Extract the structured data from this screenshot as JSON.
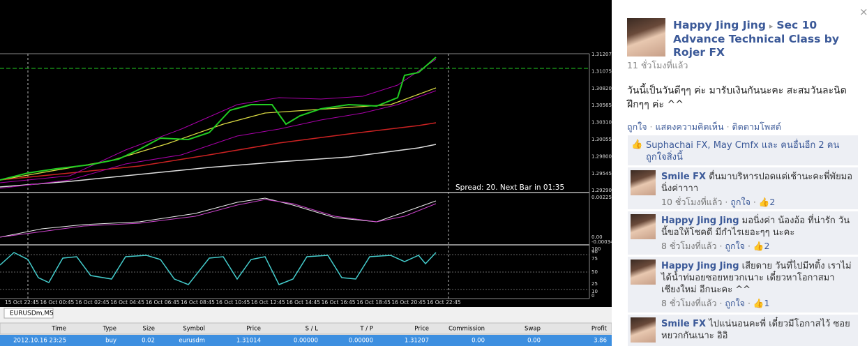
{
  "chart": {
    "price_labels": [
      "1.31207",
      "1.31075",
      "1.30820",
      "1.30565",
      "1.30310",
      "1.30055",
      "1.29800",
      "1.29545",
      "1.29290"
    ],
    "macd_labels": [
      "0.002255",
      "0.00",
      "-0.00034"
    ],
    "stoch_labels": [
      "100",
      "90",
      "75",
      "50",
      "25",
      "10",
      "0"
    ],
    "time_labels": [
      "15 Oct 22:45",
      "16 Oct 00:45",
      "16 Oct 02:45",
      "16 Oct 04:45",
      "16 Oct 06:45",
      "16 Oct 08:45",
      "16 Oct 10:45",
      "16 Oct 12:45",
      "16 Oct 14:45",
      "16 Oct 16:45",
      "16 Oct 18:45",
      "16 Oct 20:45",
      "16 Oct 22:45"
    ],
    "spread_text": "Spread: 20. Next Bar in 01:35",
    "tab": "EURUSDm,M5"
  },
  "table": {
    "header": [
      "Time",
      "Type",
      "Size",
      "Symbol",
      "Price",
      "S / L",
      "T / P",
      "Price",
      "Commission",
      "Swap",
      "Profit"
    ],
    "rows": [
      [
        "2012.10.16 23:25",
        "buy",
        "0.02",
        "eurusdm",
        "1.31014",
        "0.00000",
        "0.00000",
        "1.31207",
        "0.00",
        "0.00",
        "3.86"
      ]
    ]
  },
  "post": {
    "close": "×",
    "author": "Happy Jing Jing",
    "album": "Sec 10 Advance Technical Class by Rojer FX",
    "time": "11 ชั่วโมงที่แล้ว",
    "message": "วันนี้เป็นวันดีๆๆ ค่ะ มารับเงินกันนะคะ สะสมวันละนิด ฝึกๆๆ ค่ะ ^^",
    "actions": [
      "ถูกใจ",
      "แสดงความคิดเห็น",
      "ติดตามโพสต์"
    ],
    "likes": "Suphachai FX, May Cmfx และ คนอื่นอีก 2 คน ถูกใจสิ่งนี้"
  },
  "comments": [
    {
      "name": "Smile FX",
      "text": "ตื่นมาบริหารปอดแต่เช้านะคะพี่พัยมอนิ่งค่าาาา",
      "time": "10 ชั่วโมงที่แล้ว",
      "like": "ถูกใจ",
      "likes": "2"
    },
    {
      "name": "Happy Jing Jing",
      "text": "มอนิ่งค่า น้องอ้อ ที่น่ารัก วันนี้ขอให้โชคดี มีกำไรเยอะๆๆ นะคะ",
      "time": "8 ชั่วโมงที่แล้ว",
      "like": "ถูกใจ",
      "likes": "2"
    },
    {
      "name": "Happy Jing Jing",
      "text": "เสียดาย วันที่ไปมีทติ้ง เราไม่ได้น้ำท่มอยซอยหยวกเนาะ เดี๋ยวหาโอกาสมาเชียงใหม่ อีกนะคะ ^^",
      "time": "8 ชั่วโมงที่แล้ว",
      "like": "ถูกใจ",
      "likes": "1"
    },
    {
      "name": "Smile FX",
      "text": "ไปแน่นอนคะพี่ เดี๋ยวมีโอกาสไว้ ซอยหยวกกันเนาะ อิอิ"
    }
  ]
}
